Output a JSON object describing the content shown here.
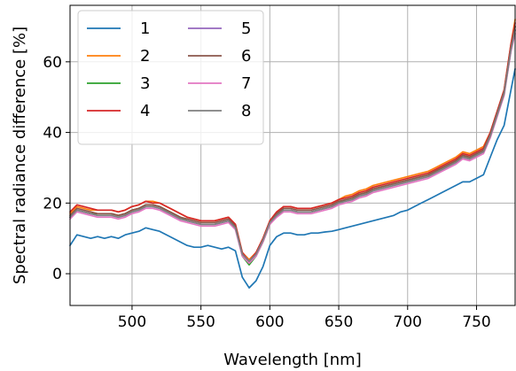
{
  "chart_data": {
    "type": "line",
    "xlabel": "Wavelength [nm]",
    "ylabel": "Spectral radiance difference [%]",
    "xlim": [
      455,
      778
    ],
    "ylim": [
      -9,
      76
    ],
    "xticks": [
      500,
      550,
      600,
      650,
      700,
      750
    ],
    "yticks": [
      0,
      20,
      40,
      60
    ],
    "grid": true,
    "legend": {
      "position": "top-left",
      "columns": 2
    },
    "series": [
      {
        "name": "1",
        "color": "#1f77b4",
        "x": [
          455,
          460,
          465,
          470,
          475,
          480,
          485,
          490,
          495,
          500,
          505,
          510,
          515,
          520,
          525,
          530,
          535,
          540,
          545,
          550,
          555,
          560,
          565,
          570,
          575,
          580,
          585,
          590,
          595,
          600,
          605,
          610,
          615,
          620,
          625,
          630,
          635,
          640,
          645,
          650,
          655,
          660,
          665,
          670,
          675,
          680,
          685,
          690,
          695,
          700,
          705,
          710,
          715,
          720,
          725,
          730,
          735,
          740,
          745,
          750,
          755,
          760,
          765,
          770,
          775,
          778
        ],
        "y": [
          8,
          11,
          10.5,
          10,
          10.5,
          10,
          10.5,
          10,
          11,
          11.5,
          12,
          13,
          12.5,
          12,
          11,
          10,
          9,
          8,
          7.5,
          7.5,
          8,
          7.5,
          7,
          7.5,
          6.5,
          -1,
          -4,
          -2,
          2,
          8,
          10.5,
          11.5,
          11.5,
          11,
          11,
          11.5,
          11.5,
          11.8,
          12,
          12.5,
          13,
          13.5,
          14,
          14.5,
          15,
          15.5,
          16,
          16.5,
          17.5,
          18,
          19,
          20,
          21,
          22,
          23,
          24,
          25,
          26,
          26,
          27,
          28,
          33,
          38,
          42,
          52,
          58
        ]
      },
      {
        "name": "2",
        "color": "#ff7f0e",
        "x": [
          455,
          460,
          465,
          470,
          475,
          480,
          485,
          490,
          495,
          500,
          505,
          510,
          515,
          520,
          525,
          530,
          535,
          540,
          545,
          550,
          555,
          560,
          565,
          570,
          575,
          580,
          585,
          590,
          595,
          600,
          605,
          610,
          615,
          620,
          625,
          630,
          635,
          640,
          645,
          650,
          655,
          660,
          665,
          670,
          675,
          680,
          685,
          690,
          695,
          700,
          705,
          710,
          715,
          720,
          725,
          730,
          735,
          740,
          745,
          750,
          755,
          760,
          765,
          770,
          775,
          778
        ],
        "y": [
          17,
          19,
          18.5,
          18,
          18,
          18,
          18,
          17.5,
          18,
          19,
          19.5,
          20.5,
          20.5,
          20,
          19,
          18,
          17,
          16,
          15.5,
          15,
          15,
          15,
          15.5,
          16,
          14,
          6,
          4,
          6,
          10,
          15,
          17.5,
          19,
          19,
          18.5,
          18.5,
          18.5,
          19,
          19.5,
          20,
          21,
          22,
          22.5,
          23.5,
          24,
          25,
          25.5,
          26,
          26.5,
          27,
          27.5,
          28,
          28.5,
          29,
          30,
          31,
          32,
          33,
          34.5,
          34,
          35,
          36,
          40,
          46,
          52,
          65,
          72
        ]
      },
      {
        "name": "3",
        "color": "#2ca02c",
        "x": [
          455,
          460,
          465,
          470,
          475,
          480,
          485,
          490,
          495,
          500,
          505,
          510,
          515,
          520,
          525,
          530,
          535,
          540,
          545,
          550,
          555,
          560,
          565,
          570,
          575,
          580,
          585,
          590,
          595,
          600,
          605,
          610,
          615,
          620,
          625,
          630,
          635,
          640,
          645,
          650,
          655,
          660,
          665,
          670,
          675,
          680,
          685,
          690,
          695,
          700,
          705,
          710,
          715,
          720,
          725,
          730,
          735,
          740,
          745,
          750,
          755,
          760,
          765,
          770,
          775,
          778
        ],
        "y": [
          16,
          18,
          17.5,
          17,
          17,
          17,
          17,
          16.5,
          17,
          18,
          18.5,
          19.5,
          19.5,
          19,
          18,
          17,
          16,
          15,
          14.5,
          14,
          14,
          14,
          14.5,
          15,
          13,
          5,
          2.5,
          5,
          9,
          14,
          16.5,
          18,
          18,
          17.5,
          17.5,
          17.5,
          18,
          18.5,
          19,
          20,
          21,
          21.5,
          22.5,
          23,
          24,
          24.5,
          25,
          25.5,
          26,
          26.5,
          27,
          27.5,
          28,
          29,
          30,
          31,
          32,
          33.5,
          33,
          34,
          35,
          39,
          45,
          51,
          64,
          70
        ]
      },
      {
        "name": "4",
        "color": "#d62728",
        "x": [
          455,
          460,
          465,
          470,
          475,
          480,
          485,
          490,
          495,
          500,
          505,
          510,
          515,
          520,
          525,
          530,
          535,
          540,
          545,
          550,
          555,
          560,
          565,
          570,
          575,
          580,
          585,
          590,
          595,
          600,
          605,
          610,
          615,
          620,
          625,
          630,
          635,
          640,
          645,
          650,
          655,
          660,
          665,
          670,
          675,
          680,
          685,
          690,
          695,
          700,
          705,
          710,
          715,
          720,
          725,
          730,
          735,
          740,
          745,
          750,
          755,
          760,
          765,
          770,
          775,
          778
        ],
        "y": [
          17.5,
          19.5,
          19,
          18.5,
          18,
          18,
          18,
          17.5,
          18,
          19,
          19.5,
          20.5,
          20,
          20,
          19,
          18,
          17,
          16,
          15.5,
          15,
          15,
          15,
          15.5,
          16,
          14,
          6,
          3.5,
          6,
          10,
          15,
          17.5,
          19,
          19,
          18.5,
          18.5,
          18.5,
          19,
          19.5,
          20,
          21,
          21.5,
          22,
          23,
          23.5,
          24.5,
          25,
          25.5,
          26,
          26.5,
          27,
          27.5,
          28,
          28.5,
          29.5,
          30.5,
          31.5,
          32.5,
          34,
          33.5,
          34.5,
          35.5,
          40,
          46,
          52,
          65,
          71
        ]
      },
      {
        "name": "5",
        "color": "#9467bd",
        "x": [
          455,
          460,
          465,
          470,
          475,
          480,
          485,
          490,
          495,
          500,
          505,
          510,
          515,
          520,
          525,
          530,
          535,
          540,
          545,
          550,
          555,
          560,
          565,
          570,
          575,
          580,
          585,
          590,
          595,
          600,
          605,
          610,
          615,
          620,
          625,
          630,
          635,
          640,
          645,
          650,
          655,
          660,
          665,
          670,
          675,
          680,
          685,
          690,
          695,
          700,
          705,
          710,
          715,
          720,
          725,
          730,
          735,
          740,
          745,
          750,
          755,
          760,
          765,
          770,
          775,
          778
        ],
        "y": [
          16,
          18,
          17.5,
          17,
          16.5,
          16.5,
          16.5,
          16,
          16.5,
          17.5,
          18,
          19,
          19,
          18.5,
          17.5,
          16.5,
          15.5,
          15,
          14.5,
          14,
          14,
          14,
          14.5,
          15,
          13,
          5.5,
          3.5,
          5.5,
          9.5,
          14.5,
          16.5,
          18,
          18,
          17.5,
          17.5,
          17.5,
          18,
          18.5,
          19,
          20,
          20.5,
          21,
          22,
          22.5,
          23.5,
          24,
          24.5,
          25,
          25.5,
          26,
          26.5,
          27,
          27.5,
          28.5,
          29.5,
          30.5,
          31.5,
          33,
          32.5,
          33.5,
          34.5,
          39,
          45,
          51,
          63,
          69
        ]
      },
      {
        "name": "6",
        "color": "#8c564b",
        "x": [
          455,
          460,
          465,
          470,
          475,
          480,
          485,
          490,
          495,
          500,
          505,
          510,
          515,
          520,
          525,
          530,
          535,
          540,
          545,
          550,
          555,
          560,
          565,
          570,
          575,
          580,
          585,
          590,
          595,
          600,
          605,
          610,
          615,
          620,
          625,
          630,
          635,
          640,
          645,
          650,
          655,
          660,
          665,
          670,
          675,
          680,
          685,
          690,
          695,
          700,
          705,
          710,
          715,
          720,
          725,
          730,
          735,
          740,
          745,
          750,
          755,
          760,
          765,
          770,
          775,
          778
        ],
        "y": [
          16.5,
          18.5,
          18,
          17.5,
          17,
          17,
          17,
          16.5,
          17,
          18,
          18.5,
          19.5,
          19.5,
          19,
          18,
          17,
          16,
          15.5,
          15,
          14.5,
          14.5,
          14.5,
          15,
          15.5,
          13.5,
          5.5,
          3,
          5.5,
          9.5,
          14.5,
          17,
          18.5,
          18.5,
          18,
          18,
          18,
          18.5,
          19,
          19.5,
          20.5,
          21,
          21.5,
          22.5,
          23,
          24,
          24.5,
          25,
          25.5,
          26,
          26.5,
          27,
          27.5,
          28,
          29,
          30,
          31,
          32,
          33.5,
          33,
          34,
          35,
          39.5,
          45.5,
          51.5,
          64,
          70
        ]
      },
      {
        "name": "7",
        "color": "#e377c2",
        "x": [
          455,
          460,
          465,
          470,
          475,
          480,
          485,
          490,
          495,
          500,
          505,
          510,
          515,
          520,
          525,
          530,
          535,
          540,
          545,
          550,
          555,
          560,
          565,
          570,
          575,
          580,
          585,
          590,
          595,
          600,
          605,
          610,
          615,
          620,
          625,
          630,
          635,
          640,
          645,
          650,
          655,
          660,
          665,
          670,
          675,
          680,
          685,
          690,
          695,
          700,
          705,
          710,
          715,
          720,
          725,
          730,
          735,
          740,
          745,
          750,
          755,
          760,
          765,
          770,
          775,
          778
        ],
        "y": [
          15.5,
          17.5,
          17,
          16.5,
          16,
          16,
          16,
          15.5,
          16,
          17,
          17.5,
          18.5,
          18.5,
          18,
          17,
          16,
          15,
          14.5,
          14,
          13.5,
          13.5,
          13.5,
          14,
          14.5,
          12.5,
          5,
          3,
          5,
          9,
          14,
          16,
          17.5,
          17.5,
          17,
          17,
          17,
          17.5,
          18,
          18.5,
          19.5,
          20,
          20.5,
          21.5,
          22,
          23,
          23.5,
          24,
          24.5,
          25,
          25.5,
          26,
          26.5,
          27,
          28,
          29,
          30,
          31,
          32.5,
          32,
          33,
          34,
          38.5,
          44.5,
          50.5,
          63,
          68
        ]
      },
      {
        "name": "8",
        "color": "#7f7f7f",
        "x": [
          455,
          460,
          465,
          470,
          475,
          480,
          485,
          490,
          495,
          500,
          505,
          510,
          515,
          520,
          525,
          530,
          535,
          540,
          545,
          550,
          555,
          560,
          565,
          570,
          575,
          580,
          585,
          590,
          595,
          600,
          605,
          610,
          615,
          620,
          625,
          630,
          635,
          640,
          645,
          650,
          655,
          660,
          665,
          670,
          675,
          680,
          685,
          690,
          695,
          700,
          705,
          710,
          715,
          720,
          725,
          730,
          735,
          740,
          745,
          750,
          755,
          760,
          765,
          770,
          775,
          778
        ],
        "y": [
          16,
          18,
          17.5,
          17,
          16.5,
          16.5,
          16.5,
          16,
          16.5,
          17.5,
          18,
          19,
          19,
          18.5,
          17.5,
          16.5,
          15.5,
          15,
          14.5,
          14,
          14,
          14,
          14.5,
          15,
          13,
          5.5,
          3.5,
          5.5,
          9.5,
          14.5,
          16.5,
          18,
          18,
          17.5,
          17.5,
          17.5,
          18,
          18.5,
          19,
          20,
          20.5,
          21,
          22,
          22.5,
          23.5,
          24,
          24.5,
          25,
          25.5,
          26,
          26.5,
          27,
          27.5,
          28.5,
          29.5,
          30.5,
          31.5,
          33,
          32.5,
          33.5,
          34.5,
          39,
          45,
          51,
          63.5,
          69
        ]
      }
    ]
  }
}
